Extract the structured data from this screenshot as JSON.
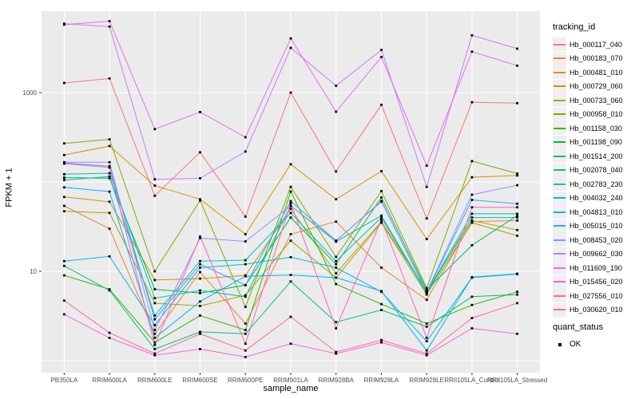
{
  "chart_data": {
    "type": "line",
    "xlabel": "sample_name",
    "ylabel": "FPKM + 1",
    "y_scale": "log10",
    "y_tick_labels": [
      "1000",
      "10"
    ],
    "y_tick_values": [
      1000,
      10
    ],
    "y_gridline_values": [
      1,
      10,
      100,
      1000
    ],
    "grid": "on",
    "panel_color": "#ebebeb",
    "gridline_color": "#ffffff",
    "axis_text_color": "#4d4d4d",
    "point_color": "#000000",
    "legend_position": "right",
    "categories": [
      "PB350LA",
      "RRIM600LA",
      "RRIM600LE",
      "RRIM600SE",
      "RRIM600PE",
      "RRIM901LA",
      "RRIM928BA",
      "RRIM928LA",
      "RRIM928LE",
      "RRII105LA_Control",
      "RRII105LA_Stressed"
    ],
    "series": [
      {
        "name": "Hb_000117_040",
        "color": "#F8766D",
        "values": [
          1280,
          1440,
          70,
          215,
          41,
          1000,
          131,
          730,
          39,
          780,
          760
        ]
      },
      {
        "name": "Hb_000183_070",
        "color": "#EA8331",
        "values": [
          54,
          30,
          2.0,
          9.8,
          2.6,
          26,
          36,
          11,
          4.8,
          36,
          37
        ]
      },
      {
        "name": "Hb_000481_010",
        "color": "#D89000",
        "values": [
          200,
          252,
          91,
          64,
          26,
          158,
          64,
          132,
          23,
          113,
          118
        ]
      },
      {
        "name": "Hb_000729_060",
        "color": "#C09B00",
        "values": [
          68,
          60,
          8.0,
          8.3,
          9.0,
          50,
          9.5,
          36,
          6.0,
          37,
          29
        ]
      },
      {
        "name": "Hb_000733_060",
        "color": "#A3A500",
        "values": [
          47,
          45,
          4.4,
          4.1,
          5.4,
          22,
          8.5,
          35,
          5.5,
          35,
          25
        ]
      },
      {
        "name": "Hb_000958_010",
        "color": "#7CAE00",
        "values": [
          270,
          300,
          10,
          62,
          4.0,
          88,
          14.5,
          79,
          6.5,
          171,
          124
        ]
      },
      {
        "name": "Hb_001158_030",
        "color": "#39B600",
        "values": [
          9.0,
          6.3,
          1.6,
          3.2,
          2.2,
          78,
          7.2,
          4.3,
          2.6,
          4.2,
          5.9
        ]
      },
      {
        "name": "Hb_001198_090",
        "color": "#00BB4E",
        "values": [
          112,
          110,
          6.3,
          5.7,
          7.0,
          40,
          12,
          67,
          6.2,
          19.6,
          42
        ]
      },
      {
        "name": "Hb_001514_200",
        "color": "#00BF7D",
        "values": [
          11.5,
          6.1,
          1.35,
          2.1,
          2.0,
          7.7,
          2.7,
          3.7,
          2.4,
          5.2,
          5.5
        ]
      },
      {
        "name": "Hb_002078_040",
        "color": "#00C1A3",
        "values": [
          122,
          125,
          5.0,
          6.1,
          5.2,
          54,
          21.5,
          42,
          5.8,
          44,
          44
        ]
      },
      {
        "name": "Hb_002783_230",
        "color": "#00BFC4",
        "values": [
          105,
          115,
          3.2,
          13,
          13.3,
          45,
          13,
          40,
          5.7,
          40,
          40
        ]
      },
      {
        "name": "Hb_004032_240",
        "color": "#00BBDA",
        "values": [
          13,
          14.7,
          2.5,
          11,
          12,
          14.4,
          11,
          5.9,
          1.65,
          8.5,
          9.3
        ]
      },
      {
        "name": "Hb_004813_010",
        "color": "#00B0F6",
        "values": [
          87,
          78,
          1.8,
          4.6,
          8.8,
          9.1,
          8.5,
          6.0,
          1.3,
          8.6,
          9.4
        ]
      },
      {
        "name": "Hb_005015_010",
        "color": "#35A2FF",
        "values": [
          163,
          150,
          2.9,
          12,
          7.0,
          61,
          22,
          61,
          5.8,
          63,
          57
        ]
      },
      {
        "name": "Hb_008453_020",
        "color": "#9590FF",
        "values": [
          166,
          166,
          2.2,
          23.5,
          21.6,
          54,
          22,
          60,
          5.9,
          72,
          92
        ]
      },
      {
        "name": "Hb_009662_030",
        "color": "#C77CFF",
        "values": [
          5900,
          5480,
          107,
          110,
          219,
          3160,
          1190,
          3000,
          88,
          4370,
          3100
        ]
      },
      {
        "name": "Hb_011609_190",
        "color": "#E76BF3",
        "values": [
          5750,
          6300,
          390,
          605,
          316,
          4030,
          610,
          2500,
          152,
          2870,
          2000
        ]
      },
      {
        "name": "Hb_015456_020",
        "color": "#FA62DB",
        "values": [
          3.3,
          1.8,
          1.15,
          1.35,
          1.1,
          1.55,
          1.2,
          1.6,
          1.15,
          2.3,
          2.0
        ]
      },
      {
        "name": "Hb_027556_010",
        "color": "#FF62BC",
        "values": [
          160,
          145,
          1.5,
          24.5,
          1.55,
          58,
          2.3,
          38,
          1.8,
          52,
          52
        ]
      },
      {
        "name": "Hb_030620_010",
        "color": "#FF6A98",
        "values": [
          4.7,
          2.05,
          1.2,
          2.0,
          1.3,
          3.1,
          1.25,
          1.7,
          1.2,
          3.0,
          4.4
        ]
      }
    ],
    "legend": {
      "series_title": "tracking_id",
      "point_title": "quant_status",
      "point_label": "OK"
    }
  }
}
